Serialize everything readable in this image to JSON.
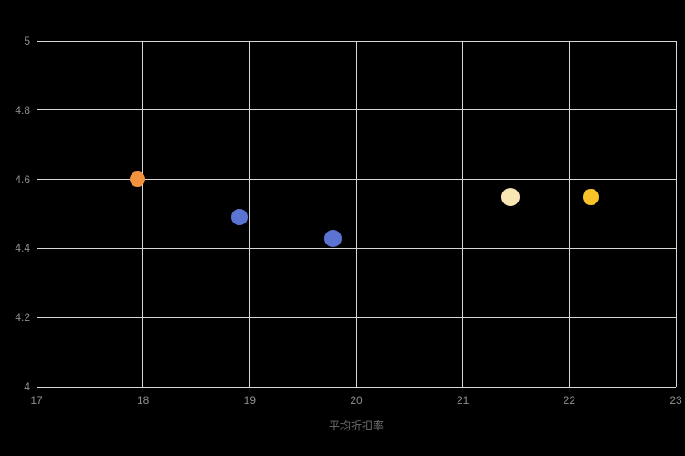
{
  "chart_data": {
    "type": "scatter",
    "title": "",
    "xlabel": "平均折扣率",
    "ylabel": "",
    "xlim": [
      17,
      23
    ],
    "ylim": [
      4,
      5
    ],
    "xticks": [
      "17",
      "18",
      "19",
      "20",
      "21",
      "22",
      "23"
    ],
    "yticks": [
      "4",
      "4.2",
      "4.4",
      "4.6",
      "4.8",
      "5"
    ],
    "grid": true,
    "legend": "none",
    "background": "#000000",
    "grid_color": "#d6d6d6",
    "tick_label_color": "#8f8f8f",
    "axis_label_color": "#6e6e6e",
    "points": [
      {
        "x": 17.95,
        "y": 4.6,
        "color": "#f0923e",
        "r": 8.5
      },
      {
        "x": 18.9,
        "y": 4.49,
        "color": "#5b74d4",
        "r": 9
      },
      {
        "x": 19.78,
        "y": 4.43,
        "color": "#5b74d4",
        "r": 9.5
      },
      {
        "x": 21.45,
        "y": 4.55,
        "color": "#f9e6b5",
        "r": 10
      },
      {
        "x": 22.2,
        "y": 4.55,
        "color": "#fbc32a",
        "r": 9
      }
    ]
  }
}
